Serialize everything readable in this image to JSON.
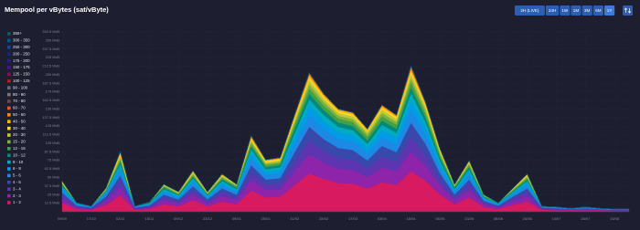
{
  "chart_data": {
    "type": "stacked-area",
    "title": "Mempool per vBytes (sat/vByte)",
    "buttons": [
      "2H (LIVE)",
      "24H",
      "1W",
      "1M",
      "3M",
      "6M",
      "1Y"
    ],
    "active_button": 6,
    "legend": "left",
    "grid": true,
    "categories": [
      "09/09",
      null,
      "17/10",
      null,
      "02/11",
      null,
      "18/11",
      null,
      "09/12",
      null,
      "23/12",
      null,
      "09/01",
      null,
      "25/01",
      null,
      "11/02",
      null,
      "28/02",
      null,
      "17/03",
      null,
      "03/04",
      null,
      "18/04",
      null,
      "08/05",
      null,
      "23/05",
      null,
      "08/06",
      null,
      "24/06",
      null,
      "10/07",
      null,
      "28/07",
      null,
      "10/08",
      null
    ],
    "ylim": [
      0,
      262.5
    ],
    "yticks": [
      {
        "value": 12.5,
        "label": "12.5 MvB"
      },
      {
        "value": 25,
        "label": "25 MvB"
      },
      {
        "value": 37.5,
        "label": "37.5 MvB"
      },
      {
        "value": 50,
        "label": "50 MvB"
      },
      {
        "value": 62.5,
        "label": "62.5 MvB"
      },
      {
        "value": 75,
        "label": "75 MvB"
      },
      {
        "value": 87.5,
        "label": "87.5 MvB"
      },
      {
        "value": 100,
        "label": "100 MvB"
      },
      {
        "value": 112.5,
        "label": "112.5 MvB"
      },
      {
        "value": 125,
        "label": "125 MvB"
      },
      {
        "value": 137.5,
        "label": "137.5 MvB"
      },
      {
        "value": 150,
        "label": "150 MvB"
      },
      {
        "value": 162.5,
        "label": "162.5 MvB"
      },
      {
        "value": 175,
        "label": "175 MvB"
      },
      {
        "value": 187.5,
        "label": "187.5 MvB"
      },
      {
        "value": 200,
        "label": "200 MvB"
      },
      {
        "value": 212.5,
        "label": "212.5 MvB"
      },
      {
        "value": 225,
        "label": "225 MvB"
      },
      {
        "value": 237.5,
        "label": "237.5 MvB"
      },
      {
        "value": 250,
        "label": "250 MvB"
      },
      {
        "value": 262.5,
        "label": "262.5 MvB"
      }
    ],
    "series": [
      {
        "name": "350+",
        "color": "#006064",
        "values": [
          0,
          0,
          0,
          0,
          0,
          0,
          0,
          0,
          0,
          0,
          0,
          0,
          0,
          0,
          0,
          0,
          0,
          0,
          0,
          0,
          0,
          0,
          0,
          0,
          0,
          0,
          0,
          0,
          0,
          0,
          0,
          0,
          0,
          0,
          0,
          0,
          0,
          0,
          0,
          0
        ]
      },
      {
        "name": "300 - 350",
        "color": "#01579b",
        "values": [
          0,
          0,
          0,
          0,
          0,
          0,
          0,
          0,
          0,
          0,
          0,
          0,
          0,
          0,
          0,
          0,
          0,
          0,
          0,
          0,
          0,
          0,
          0,
          0,
          0,
          0,
          0,
          0,
          0,
          0,
          0,
          0,
          0,
          0,
          0,
          0,
          0,
          0,
          0,
          0
        ]
      },
      {
        "name": "250 - 300",
        "color": "#0d47a1",
        "values": [
          0,
          0,
          0,
          0,
          0,
          0,
          0,
          0,
          0,
          0,
          0,
          0,
          0,
          0,
          0,
          0,
          0,
          0,
          0,
          0,
          0,
          0,
          0,
          0,
          0,
          0,
          0,
          0,
          0,
          0,
          0,
          0,
          0,
          0,
          0,
          0,
          0,
          0,
          0,
          0
        ]
      },
      {
        "name": "200 - 250",
        "color": "#1a237e",
        "values": [
          0,
          0,
          0,
          0,
          0,
          0,
          0,
          0,
          0,
          0,
          0,
          0,
          0,
          0,
          0,
          0,
          0,
          0,
          0,
          0,
          0,
          0,
          0,
          0,
          0,
          0,
          0,
          0,
          0,
          0,
          0,
          0,
          0,
          0,
          0,
          0,
          0,
          0,
          0,
          0
        ]
      },
      {
        "name": "175 - 200",
        "color": "#311b92",
        "values": [
          0,
          0,
          0,
          0,
          0,
          0,
          0,
          0,
          0,
          0,
          0,
          0,
          0,
          0,
          0,
          0,
          0,
          0,
          0,
          0,
          0,
          0,
          0,
          0,
          0,
          0,
          0,
          0,
          0,
          0,
          0,
          0,
          0,
          0,
          0,
          0,
          0,
          0,
          0,
          0
        ]
      },
      {
        "name": "150 - 175",
        "color": "#4a148c",
        "values": [
          0,
          0,
          0,
          0,
          0,
          0,
          0,
          0,
          0,
          0,
          0,
          0,
          0,
          0,
          0,
          0,
          0,
          0,
          0,
          0,
          0,
          0,
          0,
          0,
          0,
          0,
          0,
          0,
          0,
          0,
          0,
          0,
          0,
          0,
          0,
          0,
          0,
          0,
          0,
          0
        ]
      },
      {
        "name": "125 - 150",
        "color": "#880e4f",
        "values": [
          0,
          0,
          0,
          0,
          0,
          0,
          0,
          0,
          0,
          0,
          0,
          0,
          0,
          0,
          0,
          0,
          0,
          0,
          0,
          0,
          0,
          0,
          0,
          0,
          0,
          0,
          0,
          0,
          0,
          0,
          0,
          0,
          0,
          0,
          0,
          0,
          0,
          0,
          0,
          0
        ]
      },
      {
        "name": "100 - 125",
        "color": "#b71c1c",
        "values": [
          0,
          0,
          0,
          0,
          0,
          0,
          0,
          0,
          0,
          0,
          0,
          0,
          0,
          0,
          0,
          0,
          0,
          0,
          0,
          0,
          0,
          0,
          0,
          0,
          0,
          0,
          0,
          0,
          0,
          0,
          0,
          0,
          0,
          0,
          0,
          0,
          0,
          0,
          0,
          0
        ]
      },
      {
        "name": "90 - 100",
        "color": "#546e7a",
        "values": [
          0,
          0,
          0,
          0,
          0,
          0,
          0,
          0,
          0,
          0,
          0,
          0,
          0,
          0,
          0,
          0,
          0,
          0,
          0,
          0,
          0,
          0,
          0,
          0,
          0,
          0,
          0,
          0,
          0,
          0,
          0,
          0,
          0,
          0,
          0,
          0,
          0,
          0,
          0,
          0
        ]
      },
      {
        "name": "80 - 90",
        "color": "#757575",
        "values": [
          0,
          0,
          0,
          0,
          0,
          0,
          0,
          0,
          0,
          0,
          0,
          0,
          0,
          0,
          0,
          0,
          0,
          0,
          0,
          0,
          0,
          0,
          0,
          0,
          0,
          0,
          0,
          0,
          0,
          0,
          0,
          0,
          0,
          0,
          0,
          0,
          0,
          0,
          0,
          0
        ]
      },
      {
        "name": "70 - 80",
        "color": "#6d4c41",
        "values": [
          0,
          0,
          0,
          0,
          0,
          0,
          0,
          0,
          0,
          0,
          0,
          0,
          0,
          0,
          0,
          0,
          0,
          1,
          0,
          0,
          0,
          0,
          0,
          0,
          1,
          0,
          0,
          0,
          0,
          0,
          0,
          0,
          0,
          0,
          0,
          0,
          0,
          0,
          0,
          0
        ]
      },
      {
        "name": "60 - 70",
        "color": "#f4511e",
        "values": [
          0,
          0,
          0,
          0,
          1,
          0,
          0,
          0,
          0,
          0,
          0,
          0,
          0,
          1,
          0,
          0,
          1,
          1,
          1,
          0,
          0,
          0,
          1,
          0,
          2,
          1,
          0,
          0,
          0,
          0,
          0,
          0,
          0,
          0,
          0,
          0,
          0,
          0,
          0,
          0
        ]
      },
      {
        "name": "50 - 60",
        "color": "#fb8c00",
        "values": [
          0,
          0,
          0,
          0,
          1,
          0,
          0,
          0,
          0,
          1,
          0,
          0,
          0,
          1,
          1,
          1,
          1,
          2,
          1,
          1,
          1,
          1,
          1,
          1,
          2,
          1,
          1,
          0,
          1,
          0,
          0,
          0,
          0,
          0,
          0,
          0,
          0,
          0,
          0,
          0
        ]
      },
      {
        "name": "40 - 50",
        "color": "#ffb300",
        "values": [
          1,
          0,
          0,
          0,
          2,
          0,
          0,
          0,
          0,
          1,
          0,
          1,
          0,
          2,
          1,
          1,
          2,
          3,
          2,
          2,
          2,
          1,
          2,
          2,
          3,
          2,
          1,
          0,
          1,
          0,
          0,
          0,
          1,
          0,
          0,
          0,
          0,
          0,
          0,
          0
        ]
      },
      {
        "name": "30 - 40",
        "color": "#fdd835",
        "values": [
          1,
          0,
          0,
          1,
          2,
          0,
          0,
          1,
          1,
          1,
          1,
          1,
          1,
          2,
          2,
          2,
          3,
          4,
          3,
          3,
          3,
          2,
          3,
          3,
          4,
          3,
          2,
          1,
          1,
          0,
          0,
          1,
          1,
          0,
          0,
          0,
          0,
          0,
          0,
          0
        ]
      },
      {
        "name": "20 - 30",
        "color": "#c0ca33",
        "values": [
          1,
          0,
          0,
          1,
          3,
          0,
          0,
          1,
          1,
          2,
          1,
          2,
          1,
          3,
          2,
          2,
          4,
          6,
          5,
          4,
          4,
          4,
          5,
          4,
          6,
          5,
          3,
          1,
          2,
          1,
          0,
          1,
          2,
          0,
          0,
          0,
          0,
          0,
          0,
          0
        ]
      },
      {
        "name": "15 - 20",
        "color": "#7cb342",
        "values": [
          1,
          0,
          0,
          1,
          3,
          0,
          0,
          1,
          1,
          2,
          1,
          2,
          1,
          3,
          2,
          2,
          4,
          6,
          5,
          4,
          4,
          4,
          5,
          4,
          6,
          5,
          3,
          1,
          2,
          1,
          0,
          1,
          2,
          0,
          0,
          0,
          0,
          0,
          0,
          0
        ]
      },
      {
        "name": "12 - 15",
        "color": "#43a047",
        "values": [
          2,
          0,
          0,
          1,
          3,
          0,
          1,
          2,
          1,
          2,
          1,
          2,
          2,
          4,
          3,
          3,
          6,
          8,
          7,
          6,
          6,
          5,
          6,
          6,
          8,
          6,
          4,
          2,
          3,
          1,
          0,
          1,
          2,
          0,
          0,
          0,
          0,
          0,
          0,
          0
        ]
      },
      {
        "name": "10 - 12",
        "color": "#00897b",
        "values": [
          2,
          1,
          0,
          1,
          3,
          0,
          1,
          2,
          1,
          2,
          1,
          2,
          2,
          4,
          3,
          3,
          6,
          8,
          7,
          6,
          6,
          5,
          6,
          6,
          8,
          6,
          4,
          2,
          3,
          1,
          1,
          1,
          2,
          0,
          0,
          0,
          0,
          0,
          0,
          0
        ]
      },
      {
        "name": "8 - 10",
        "color": "#00acc1",
        "values": [
          2,
          1,
          0,
          2,
          4,
          0,
          1,
          2,
          2,
          3,
          2,
          3,
          2,
          6,
          4,
          4,
          7,
          10,
          9,
          8,
          7,
          6,
          8,
          7,
          11,
          8,
          5,
          2,
          4,
          1,
          1,
          2,
          3,
          0,
          0,
          0,
          0,
          0,
          0,
          0
        ]
      },
      {
        "name": "6 - 8",
        "color": "#039be5",
        "values": [
          3,
          1,
          1,
          2,
          6,
          1,
          1,
          3,
          2,
          4,
          2,
          4,
          3,
          8,
          5,
          6,
          10,
          14,
          12,
          11,
          10,
          8,
          11,
          10,
          15,
          11,
          6,
          3,
          5,
          2,
          1,
          2,
          4,
          1,
          1,
          1,
          1,
          1,
          1,
          1
        ]
      },
      {
        "name": "5 - 6",
        "color": "#1e88e5",
        "values": [
          4,
          1,
          1,
          3,
          7,
          1,
          1,
          3,
          2,
          5,
          2,
          4,
          3,
          9,
          6,
          6,
          11,
          16,
          14,
          12,
          12,
          10,
          12,
          11,
          17,
          13,
          7,
          3,
          6,
          2,
          1,
          3,
          4,
          1,
          1,
          0,
          1,
          0,
          0,
          0
        ]
      },
      {
        "name": "4 - 5",
        "color": "#3949ab",
        "values": [
          4,
          1,
          1,
          3,
          8,
          1,
          1,
          4,
          3,
          6,
          3,
          5,
          4,
          11,
          7,
          8,
          14,
          20,
          17,
          15,
          14,
          12,
          15,
          14,
          21,
          16,
          9,
          4,
          7,
          2,
          1,
          3,
          5,
          1,
          1,
          0,
          1,
          0,
          1,
          1
        ]
      },
      {
        "name": "3 - 4",
        "color": "#5e35b1",
        "values": [
          5,
          2,
          1,
          4,
          9,
          1,
          2,
          4,
          3,
          6,
          3,
          6,
          4,
          11,
          8,
          8,
          14,
          20,
          17,
          15,
          15,
          12,
          16,
          14,
          21,
          16,
          9,
          4,
          8,
          3,
          2,
          4,
          6,
          1,
          1,
          1,
          1,
          1,
          0,
          0
        ]
      },
      {
        "name": "2 - 3",
        "color": "#8e24aa",
        "values": [
          6,
          2,
          1,
          5,
          12,
          1,
          2,
          6,
          4,
          8,
          4,
          8,
          6,
          15,
          11,
          11,
          20,
          28,
          24,
          21,
          20,
          17,
          22,
          20,
          29,
          22,
          13,
          6,
          11,
          4,
          2,
          5,
          8,
          1,
          1,
          1,
          1,
          1,
          1,
          1
        ]
      },
      {
        "name": "1 - 2",
        "color": "#d81b60",
        "values": [
          13,
          4,
          3,
          10,
          24,
          3,
          4,
          11,
          8,
          17,
          8,
          15,
          11,
          31,
          21,
          22,
          39,
          56,
          48,
          42,
          41,
          34,
          43,
          39,
          59,
          45,
          25,
          11,
          21,
          7,
          4,
          10,
          15,
          3,
          2,
          2,
          2,
          2,
          1,
          1
        ]
      }
    ]
  }
}
